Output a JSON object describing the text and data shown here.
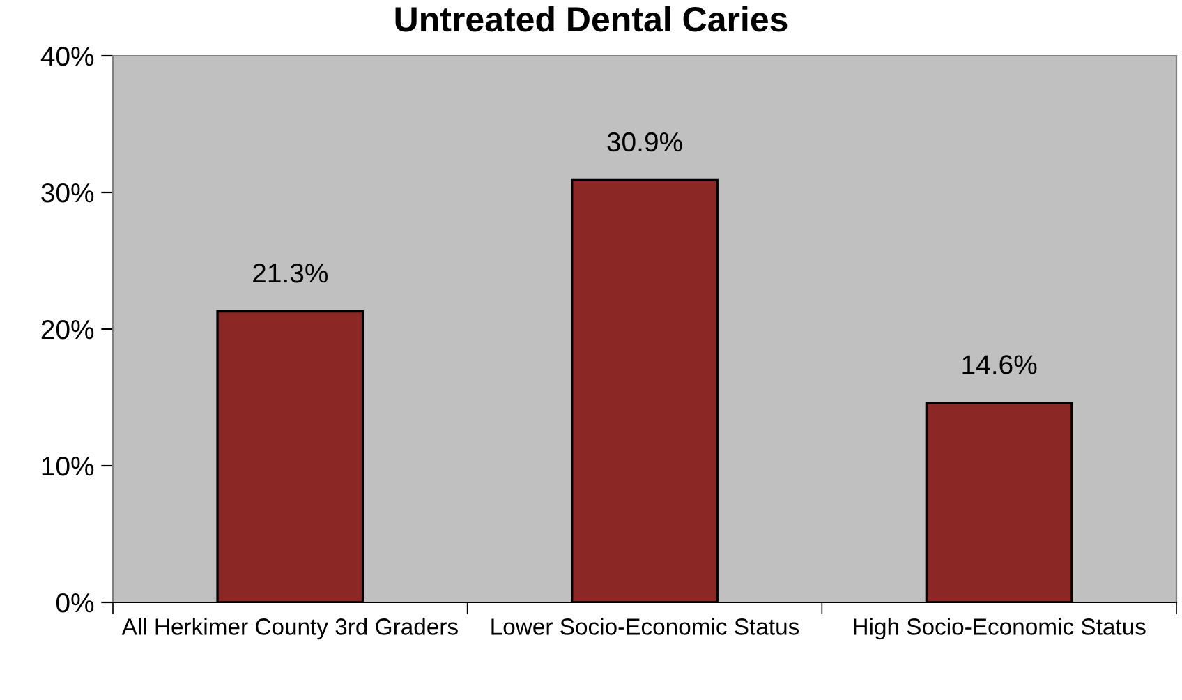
{
  "chart_data": {
    "type": "bar",
    "title": "Untreated Dental Caries",
    "categories": [
      "All Herkimer County 3rd Graders",
      "Lower Socio-Economic Status",
      "High Socio-Economic Status"
    ],
    "values": [
      21.3,
      30.9,
      14.6
    ],
    "color": "#8b2724",
    "value_labels": [
      "21.3%",
      "30.9%",
      "14.6%"
    ],
    "ylim": [
      0,
      40
    ],
    "yticks": [
      {
        "value": 0,
        "label": "0%"
      },
      {
        "value": 10,
        "label": "10%"
      },
      {
        "value": 20,
        "label": "20%"
      },
      {
        "value": 30,
        "label": "30%"
      },
      {
        "value": 40,
        "label": "40%"
      }
    ],
    "grid": false,
    "legend": false
  }
}
